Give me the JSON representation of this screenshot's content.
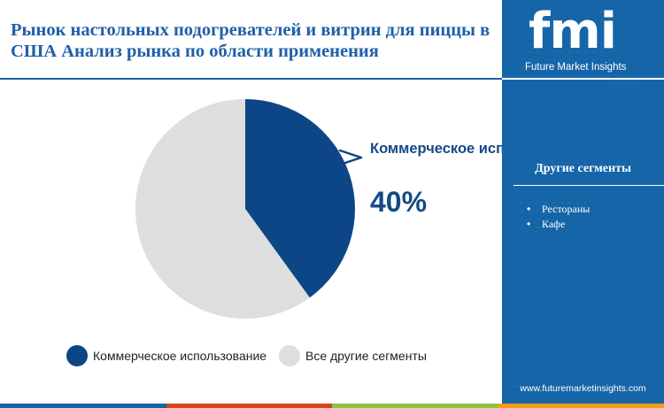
{
  "header": {
    "title": "Рынок настольных подогревателей и витрин для пиццы в США Анализ рынка по области применения"
  },
  "chart_data": {
    "type": "pie",
    "slices": [
      {
        "label": "Коммерческое использование",
        "value": 40,
        "color": "#0d4687"
      },
      {
        "label": "Все другие сегменты",
        "value": 60,
        "color": "#dedede"
      }
    ],
    "legend_placement": "bottom"
  },
  "callout": {
    "label": "Коммерческое использование",
    "value": "40%"
  },
  "legend": [
    {
      "label": "Коммерческое использование",
      "color": "#0d4687"
    },
    {
      "label": "Все другие сегменты",
      "color": "#dedede"
    }
  ],
  "sidebar": {
    "logo_text": "fmi",
    "logo_subtitle": "Future Market Insights",
    "segments_title": "Другие сегменты",
    "segments": [
      "Рестораны",
      "Кафе"
    ],
    "website": "www.futuremarketinsights.com"
  },
  "colors": {
    "accent": "#1565a8",
    "dark_blue": "#0d4687",
    "bottom_bar": [
      "#1565a8",
      "#d4451b",
      "#8cc63f",
      "#f59c1a"
    ]
  }
}
